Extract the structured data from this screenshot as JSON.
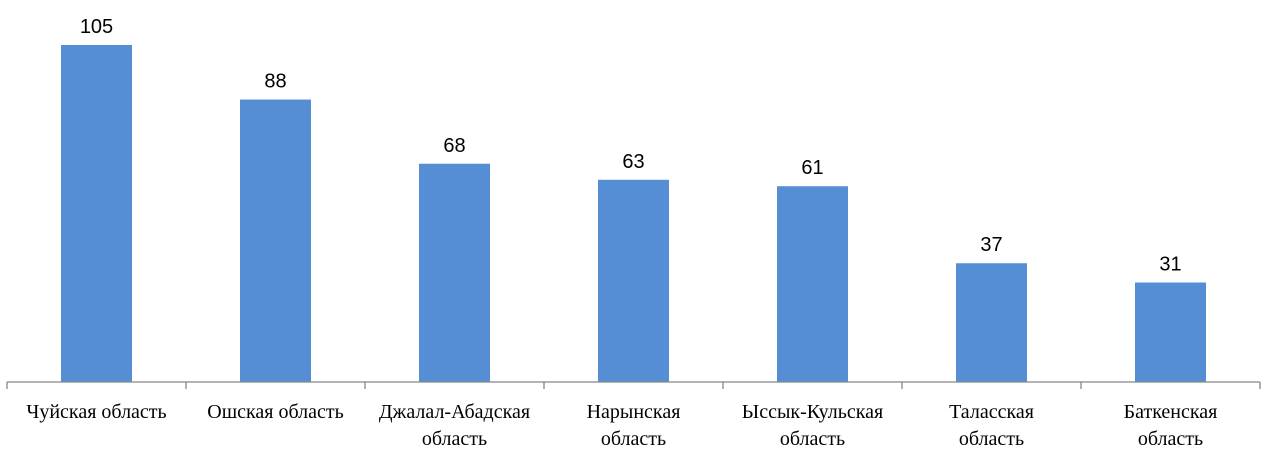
{
  "chart_data": {
    "type": "bar",
    "categories": [
      [
        "Чуйская область"
      ],
      [
        "Ошская область"
      ],
      [
        "Джалал-Абадская",
        "область"
      ],
      [
        "Нарынская",
        "область"
      ],
      [
        "Ыссык-Кульская",
        "область"
      ],
      [
        "Таласская",
        "область"
      ],
      [
        "Баткенская",
        "область"
      ]
    ],
    "values": [
      105,
      88,
      68,
      63,
      61,
      37,
      31
    ],
    "data_labels": [
      "105",
      "88",
      "68",
      "63",
      "61",
      "37",
      "31"
    ],
    "ylim": [
      0,
      105
    ],
    "grid": false,
    "legend": "none",
    "colors": {
      "bar": "#558ED5",
      "axis": "#868686"
    }
  }
}
